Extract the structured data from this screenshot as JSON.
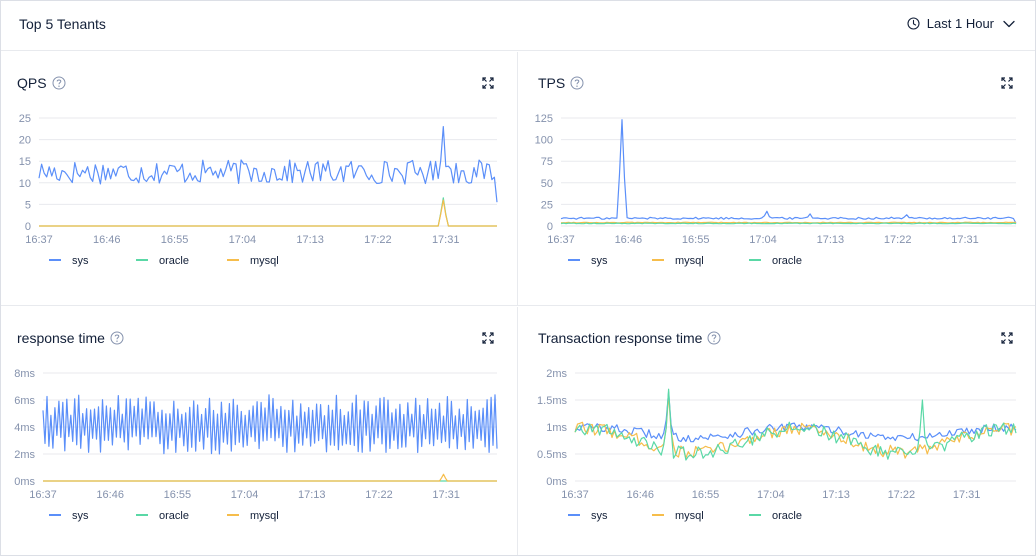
{
  "header": {
    "title": "Top 5 Tenants",
    "time_range": "Last 1 Hour"
  },
  "colors": {
    "sys": "#5b8ff9",
    "oracle": "#5ad8a6",
    "mysql": "#f6bd4b"
  },
  "panels": [
    {
      "title": "QPS",
      "help_icon": "question-circle-icon",
      "expand_icon": "fullscreen-icon"
    },
    {
      "title": "TPS",
      "help_icon": "question-circle-icon",
      "expand_icon": "fullscreen-icon"
    },
    {
      "title": "response time",
      "help_icon": "question-circle-icon",
      "expand_icon": "fullscreen-icon"
    },
    {
      "title": "Transaction response time",
      "help_icon": "question-circle-icon",
      "expand_icon": "fullscreen-icon"
    }
  ],
  "chart_data": [
    {
      "type": "line",
      "title": "QPS",
      "x_labels": [
        "16:37",
        "16:46",
        "16:55",
        "17:04",
        "17:13",
        "17:22",
        "17:31"
      ],
      "y_ticks": [
        "0",
        "5",
        "10",
        "15",
        "20",
        "25"
      ],
      "ylim": [
        0,
        25
      ],
      "legend": [
        "sys",
        "oracle",
        "mysql"
      ],
      "legend_position": "bottom-left",
      "series": [
        {
          "name": "sys",
          "pattern": "noise",
          "base": 12.5,
          "amplitude": 2.8,
          "min": 9,
          "max": 17.5,
          "spikes": [
            {
              "at": 0.88,
              "value": 23
            }
          ],
          "end": 5.5
        },
        {
          "name": "oracle",
          "pattern": "flat",
          "value": 0,
          "spikes": [
            {
              "at": 0.88,
              "value": 6.5
            }
          ]
        },
        {
          "name": "mysql",
          "pattern": "flat",
          "value": 0,
          "spikes": [
            {
              "at": 0.88,
              "value": 6
            }
          ]
        }
      ]
    },
    {
      "type": "line",
      "title": "TPS",
      "x_labels": [
        "16:37",
        "16:46",
        "16:55",
        "17:04",
        "17:13",
        "17:22",
        "17:31"
      ],
      "y_ticks": [
        "0",
        "25",
        "50",
        "75",
        "100",
        "125"
      ],
      "ylim": [
        0,
        125
      ],
      "legend": [
        "sys",
        "mysql",
        "oracle"
      ],
      "legend_position": "bottom-left",
      "series": [
        {
          "name": "sys",
          "pattern": "noise",
          "base": 9,
          "amplitude": 1.2,
          "min": 6,
          "max": 12,
          "spikes": [
            {
              "at": 0.135,
              "value": 123
            },
            {
              "at": 0.45,
              "value": 17
            },
            {
              "at": 0.55,
              "value": 14
            },
            {
              "at": 0.76,
              "value": 13
            }
          ],
          "end": 3
        },
        {
          "name": "mysql",
          "pattern": "noise",
          "base": 4,
          "amplitude": 0.4,
          "min": 3,
          "max": 5
        },
        {
          "name": "oracle",
          "pattern": "noise",
          "base": 3,
          "amplitude": 0.4,
          "min": 2,
          "max": 4
        }
      ]
    },
    {
      "type": "line",
      "title": "response time",
      "x_labels": [
        "16:37",
        "16:46",
        "16:55",
        "17:04",
        "17:13",
        "17:22",
        "17:31"
      ],
      "y_ticks": [
        "0ms",
        "2ms",
        "4ms",
        "6ms",
        "8ms"
      ],
      "ylim": [
        0,
        8
      ],
      "legend": [
        "sys",
        "oracle",
        "mysql"
      ],
      "legend_position": "bottom-left",
      "series": [
        {
          "name": "sys",
          "pattern": "oscillate",
          "base": 4,
          "amplitude": 2,
          "min": 2,
          "max": 7
        },
        {
          "name": "oracle",
          "pattern": "flat",
          "value": 0
        },
        {
          "name": "mysql",
          "pattern": "flat",
          "value": 0,
          "spikes": [
            {
              "at": 0.88,
              "value": 0.5
            }
          ]
        }
      ]
    },
    {
      "type": "line",
      "title": "Transaction response time",
      "x_labels": [
        "16:37",
        "16:46",
        "16:55",
        "17:04",
        "17:13",
        "17:22",
        "17:31"
      ],
      "y_ticks": [
        "0ms",
        "0.5ms",
        "1ms",
        "1.5ms",
        "2ms"
      ],
      "ylim": [
        0,
        2
      ],
      "legend": [
        "sys",
        "mysql",
        "oracle"
      ],
      "legend_position": "bottom-left",
      "series": [
        {
          "name": "sys",
          "pattern": "wave",
          "base": 0.9,
          "amplitude": 0.1,
          "noise": 0.08,
          "spikes": [
            {
              "at": 0.21,
              "value": 1.65
            }
          ]
        },
        {
          "name": "mysql",
          "pattern": "wave",
          "base": 0.75,
          "amplitude": 0.22,
          "noise": 0.12,
          "spikes": [
            {
              "at": 0.21,
              "value": 1.6
            }
          ]
        },
        {
          "name": "oracle",
          "pattern": "wave",
          "base": 0.74,
          "amplitude": 0.24,
          "noise": 0.13,
          "spikes": [
            {
              "at": 0.21,
              "value": 1.7
            },
            {
              "at": 0.79,
              "value": 1.5
            }
          ]
        }
      ]
    }
  ]
}
